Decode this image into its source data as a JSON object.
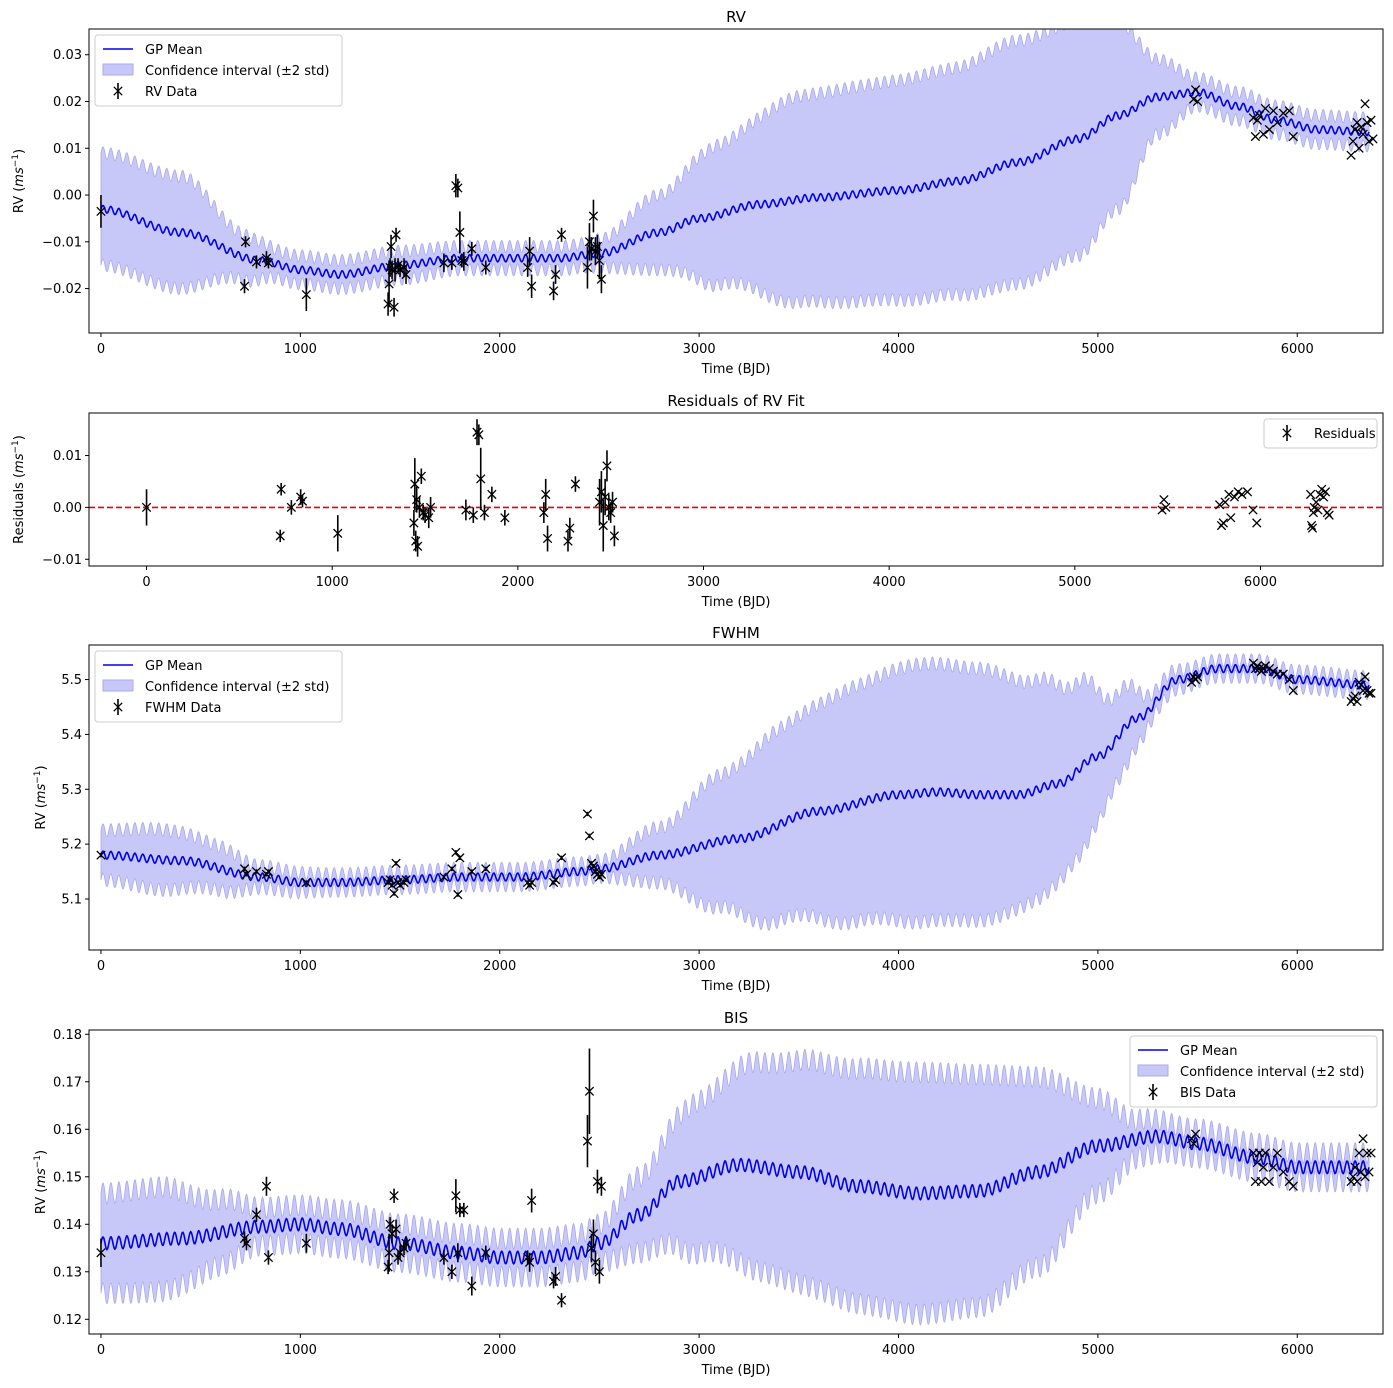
{
  "chart_data": [
    {
      "type": "line",
      "title": "RV",
      "xlabel": "Time (BJD)",
      "ylabel_base": "RV (",
      "ylabel_unit": "ms",
      "ylabel_exp": "−1",
      "ylabel_close": ")",
      "xlim": [
        -60,
        6430
      ],
      "ylim": [
        -0.0295,
        0.0355
      ],
      "xticks": [
        0,
        1000,
        2000,
        3000,
        4000,
        5000,
        6000
      ],
      "yticks": [
        -0.02,
        -0.01,
        0.0,
        0.01,
        0.02,
        0.03
      ],
      "ytick_labels": [
        "−0.02",
        "−0.01",
        "0.00",
        "0.01",
        "0.02",
        "0.03"
      ],
      "legend": "upper-left",
      "legend_entries": {
        "mean": "GP Mean",
        "band": "Confidence interval (±2 std)",
        "data": "RV Data"
      },
      "colors": {
        "mean": "#0000ee",
        "band": "#c8c8f8",
        "band_edge": "#a8a8ee",
        "data": "#000000"
      },
      "gp_mean": {
        "x": [
          0,
          400,
          800,
          1000,
          1200,
          1500,
          1800,
          2100,
          2300,
          2500,
          2800,
          3000,
          3300,
          3600,
          4000,
          4300,
          4600,
          4900,
          5100,
          5300,
          5500,
          5700,
          5900,
          6100,
          6350
        ],
        "y": [
          -0.003,
          -0.008,
          -0.014,
          -0.016,
          -0.017,
          -0.015,
          -0.0135,
          -0.0135,
          -0.0135,
          -0.0125,
          -0.008,
          -0.005,
          -0.002,
          -0.0005,
          0.001,
          0.003,
          0.007,
          0.012,
          0.017,
          0.021,
          0.022,
          0.019,
          0.016,
          0.014,
          0.0135
        ]
      },
      "gp_halfwidth": {
        "x": [
          0,
          400,
          700,
          900,
          1200,
          1500,
          1800,
          2100,
          2400,
          2500,
          2800,
          3100,
          3500,
          3800,
          4200,
          4600,
          4900,
          5100,
          5300,
          5500,
          5700,
          5900,
          6100,
          6350
        ],
        "y": [
          0.012,
          0.012,
          0.005,
          0.003,
          0.003,
          0.003,
          0.0025,
          0.0025,
          0.0025,
          0.003,
          0.008,
          0.015,
          0.022,
          0.023,
          0.024,
          0.026,
          0.025,
          0.02,
          0.008,
          0.003,
          0.003,
          0.003,
          0.003,
          0.003
        ]
      },
      "osc_amp": 0.0013,
      "osc_period": 40,
      "data_x": [
        0,
        720,
        725,
        780,
        830,
        840,
        1030,
        1440,
        1445,
        1450,
        1455,
        1460,
        1470,
        1475,
        1480,
        1490,
        1500,
        1520,
        1530,
        1720,
        1760,
        1780,
        1790,
        1800,
        1810,
        1820,
        1860,
        1930,
        2140,
        2150,
        2160,
        2270,
        2280,
        2310,
        2440,
        2450,
        2460,
        2470,
        2480,
        2490,
        2500,
        2510
      ],
      "data_y": [
        -0.0035,
        -0.0195,
        -0.01,
        -0.0143,
        -0.0135,
        -0.0145,
        -0.0213,
        -0.0233,
        -0.019,
        -0.0155,
        -0.011,
        -0.016,
        -0.024,
        -0.016,
        -0.0085,
        -0.015,
        -0.016,
        -0.0155,
        -0.017,
        -0.0145,
        -0.0145,
        0.002,
        0.0015,
        -0.008,
        -0.014,
        -0.0142,
        -0.0115,
        -0.0155,
        -0.0155,
        -0.012,
        -0.0195,
        -0.0205,
        -0.017,
        -0.0085,
        -0.0155,
        -0.01,
        -0.0115,
        -0.0045,
        -0.012,
        -0.011,
        -0.014,
        -0.018
      ],
      "data_err": [
        0.0035,
        0.0015,
        0.0012,
        0.0014,
        0.0015,
        0.0012,
        0.0035,
        0.0025,
        0.005,
        0.002,
        0.0025,
        0.002,
        0.002,
        0.0025,
        0.0015,
        0.0015,
        0.0015,
        0.002,
        0.002,
        0.002,
        0.0015,
        0.0025,
        0.002,
        0.0045,
        0.0015,
        0.002,
        0.0015,
        0.0015,
        0.002,
        0.003,
        0.0025,
        0.002,
        0.002,
        0.0015,
        0.0045,
        0.004,
        0.0025,
        0.0035,
        0.003,
        0.0025,
        0.004,
        0.003
      ],
      "data2_x": [
        5480,
        5490,
        5500,
        5780,
        5790,
        5800,
        5810,
        5830,
        5840,
        5860,
        5880,
        5900,
        5930,
        5960,
        5980,
        6270,
        6280,
        6290,
        6300,
        6310,
        6320,
        6330,
        6340,
        6350,
        6360,
        6370,
        6380
      ],
      "data2_y": [
        0.0205,
        0.0225,
        0.02,
        0.0165,
        0.0125,
        0.016,
        0.017,
        0.013,
        0.0185,
        0.014,
        0.018,
        0.0155,
        0.0175,
        0.018,
        0.0125,
        0.0085,
        0.0115,
        0.014,
        0.0155,
        0.01,
        0.0145,
        0.013,
        0.0195,
        0.0155,
        0.0115,
        0.016,
        0.012
      ]
    },
    {
      "type": "scatter",
      "title": "Residuals of RV Fit",
      "xlabel": "Time (BJD)",
      "ylabel_base": "Residuals (",
      "ylabel_unit": "ms",
      "ylabel_exp": "−1",
      "ylabel_close": ")",
      "xlim": [
        -310,
        6660
      ],
      "ylim": [
        -0.0113,
        0.0182
      ],
      "xticks": [
        0,
        1000,
        2000,
        3000,
        4000,
        5000,
        6000
      ],
      "yticks": [
        -0.01,
        0.0,
        0.01
      ],
      "ytick_labels": [
        "−0.01",
        "0.00",
        "0.01"
      ],
      "legend": "upper-right",
      "legend_entries": {
        "data": "Residuals"
      },
      "zero_line": {
        "y": 0.0,
        "color": "#ee0000",
        "style": "dashed"
      },
      "data_x": [
        0,
        720,
        725,
        780,
        830,
        840,
        1030,
        1440,
        1445,
        1450,
        1455,
        1460,
        1470,
        1480,
        1490,
        1500,
        1520,
        1530,
        1720,
        1760,
        1780,
        1790,
        1800,
        1820,
        1860,
        1930,
        2140,
        2150,
        2160,
        2270,
        2280,
        2310,
        2440,
        2450,
        2460,
        2470,
        2480,
        2490,
        2500,
        2510,
        2520
      ],
      "data_y": [
        0.0,
        -0.0055,
        0.0035,
        0.0,
        0.002,
        0.0012,
        -0.005,
        -0.003,
        0.0045,
        -0.0065,
        0.0015,
        -0.0075,
        0.0,
        0.006,
        -0.001,
        -0.0015,
        -0.002,
        0.0,
        -0.0005,
        -0.0015,
        0.0145,
        0.014,
        0.0055,
        -0.001,
        0.0025,
        -0.002,
        -0.001,
        0.0025,
        -0.006,
        -0.0065,
        -0.004,
        0.0045,
        0.001,
        0.003,
        -0.0035,
        0.002,
        0.008,
        0.0,
        -0.001,
        0.001,
        -0.0055
      ],
      "data_err": [
        0.0035,
        0.0012,
        0.0012,
        0.0014,
        0.0015,
        0.0012,
        0.0035,
        0.0025,
        0.005,
        0.002,
        0.0025,
        0.002,
        0.002,
        0.0015,
        0.0015,
        0.0015,
        0.002,
        0.002,
        0.002,
        0.0015,
        0.0025,
        0.002,
        0.006,
        0.0015,
        0.0015,
        0.0015,
        0.002,
        0.003,
        0.0025,
        0.002,
        0.002,
        0.0015,
        0.0045,
        0.004,
        0.005,
        0.0035,
        0.003,
        0.0025,
        0.002,
        0.002,
        0.002
      ],
      "data2_x": [
        5470,
        5480,
        5490,
        5780,
        5790,
        5800,
        5810,
        5830,
        5840,
        5860,
        5880,
        5900,
        5930,
        5960,
        5980,
        6270,
        6275,
        6280,
        6285,
        6290,
        6300,
        6310,
        6320,
        6330,
        6340,
        6350,
        6360,
        6370
      ],
      "data2_y": [
        -0.0005,
        0.0015,
        0.0,
        0.0005,
        -0.0035,
        -0.003,
        0.001,
        0.0025,
        -0.002,
        0.002,
        0.003,
        0.0025,
        0.003,
        -0.0005,
        -0.003,
        0.0025,
        -0.0035,
        -0.004,
        -0.001,
        0.0,
        0.001,
        -0.0005,
        0.0025,
        0.0035,
        0.002,
        0.003,
        -0.001,
        -0.0015
      ]
    },
    {
      "type": "line",
      "title": "FWHM",
      "xlabel": "Time (BJD)",
      "ylabel_base": "RV (",
      "ylabel_unit": "ms",
      "ylabel_exp": "−1",
      "ylabel_close": ")",
      "xlim": [
        -60,
        6430
      ],
      "ylim": [
        5.007,
        5.563
      ],
      "xticks": [
        0,
        1000,
        2000,
        3000,
        4000,
        5000,
        6000
      ],
      "yticks": [
        5.1,
        5.2,
        5.3,
        5.4,
        5.5
      ],
      "ytick_labels": [
        "5.1",
        "5.2",
        "5.3",
        "5.4",
        "5.5"
      ],
      "legend": "upper-left",
      "legend_entries": {
        "mean": "GP Mean",
        "band": "Confidence interval (±2 std)",
        "data": "FWHM Data"
      },
      "colors": {
        "mean": "#0000ee",
        "band": "#c8c8f8",
        "band_edge": "#a8a8ee",
        "data": "#000000"
      },
      "gp_mean": {
        "x": [
          0,
          400,
          800,
          1000,
          1200,
          1500,
          1800,
          2100,
          2400,
          2500,
          2800,
          3200,
          3600,
          4000,
          4200,
          4400,
          4600,
          4800,
          5000,
          5200,
          5400,
          5600,
          5800,
          6000,
          6350
        ],
        "y": [
          5.18,
          5.17,
          5.14,
          5.13,
          5.13,
          5.135,
          5.14,
          5.14,
          5.15,
          5.155,
          5.18,
          5.21,
          5.26,
          5.29,
          5.295,
          5.29,
          5.29,
          5.31,
          5.36,
          5.43,
          5.5,
          5.52,
          5.52,
          5.5,
          5.49
        ]
      },
      "gp_halfwidth": {
        "x": [
          0,
          300,
          600,
          800,
          1200,
          1600,
          2000,
          2400,
          2500,
          2800,
          3100,
          3400,
          3800,
          4100,
          4400,
          4700,
          4900,
          5100,
          5300,
          5500,
          5800,
          6350
        ],
        "y": [
          0.045,
          0.055,
          0.04,
          0.02,
          0.015,
          0.015,
          0.015,
          0.015,
          0.015,
          0.05,
          0.12,
          0.175,
          0.215,
          0.235,
          0.23,
          0.2,
          0.16,
          0.08,
          0.02,
          0.015,
          0.015,
          0.015
        ]
      },
      "osc_amp": 0.012,
      "osc_period": 40,
      "data_x": [
        0,
        720,
        730,
        780,
        830,
        840,
        1030,
        1440,
        1450,
        1460,
        1470,
        1480,
        1490,
        1500,
        1520,
        1530,
        1720,
        1760,
        1780,
        1790,
        1800,
        1860,
        1930,
        2140,
        2150,
        2160,
        2270,
        2280,
        2310,
        2440,
        2450,
        2460,
        2470,
        2480,
        2490,
        2500,
        2510
      ],
      "data_y": [
        5.18,
        5.155,
        5.145,
        5.15,
        5.145,
        5.15,
        5.13,
        5.13,
        5.135,
        5.125,
        5.11,
        5.165,
        5.13,
        5.125,
        5.13,
        5.135,
        5.14,
        5.155,
        5.185,
        5.108,
        5.175,
        5.15,
        5.155,
        5.13,
        5.125,
        5.13,
        5.13,
        5.135,
        5.175,
        5.255,
        5.215,
        5.165,
        5.16,
        5.15,
        5.145,
        5.14,
        5.145
      ],
      "data_err": [
        0.004,
        0.004,
        0.004,
        0.004,
        0.004,
        0.004,
        0.004,
        0.004,
        0.004,
        0.004,
        0.004,
        0.004,
        0.004,
        0.004,
        0.004,
        0.004,
        0.004,
        0.004,
        0.004,
        0.004,
        0.004,
        0.004,
        0.004,
        0.004,
        0.004,
        0.004,
        0.004,
        0.004,
        0.004,
        0.004,
        0.004,
        0.004,
        0.004,
        0.004,
        0.004,
        0.004,
        0.004
      ],
      "data2_x": [
        5470,
        5480,
        5490,
        5500,
        5780,
        5790,
        5800,
        5810,
        5820,
        5830,
        5840,
        5860,
        5880,
        5900,
        5930,
        5960,
        5980,
        6270,
        6280,
        6290,
        6300,
        6310,
        6320,
        6330,
        6340,
        6350,
        6360,
        6370
      ],
      "data2_y": [
        5.495,
        5.505,
        5.5,
        5.505,
        5.53,
        5.52,
        5.525,
        5.52,
        5.515,
        5.52,
        5.525,
        5.52,
        5.515,
        5.51,
        5.51,
        5.5,
        5.48,
        5.46,
        5.465,
        5.47,
        5.46,
        5.495,
        5.49,
        5.48,
        5.505,
        5.48,
        5.475,
        5.475
      ]
    },
    {
      "type": "line",
      "title": "BIS",
      "xlabel": "Time (BJD)",
      "ylabel_base": "RV (",
      "ylabel_unit": "ms",
      "ylabel_exp": "−1",
      "ylabel_close": ")",
      "xlim": [
        -60,
        6430
      ],
      "ylim": [
        0.1169,
        0.1809
      ],
      "xticks": [
        0,
        1000,
        2000,
        3000,
        4000,
        5000,
        6000
      ],
      "yticks": [
        0.12,
        0.13,
        0.14,
        0.15,
        0.16,
        0.17,
        0.18
      ],
      "ytick_labels": [
        "0.12",
        "0.13",
        "0.14",
        "0.15",
        "0.16",
        "0.17",
        "0.18"
      ],
      "legend": "upper-right",
      "legend_entries": {
        "mean": "GP Mean",
        "band": "Confidence interval (±2 std)",
        "data": "BIS Data"
      },
      "colors": {
        "mean": "#0000ee",
        "band": "#c8c8f8",
        "band_edge": "#a8a8ee",
        "data": "#000000"
      },
      "gp_mean": {
        "x": [
          0,
          400,
          800,
          1000,
          1200,
          1500,
          1800,
          2000,
          2200,
          2400,
          2500,
          2700,
          2900,
          3200,
          3500,
          3800,
          4100,
          4400,
          4700,
          5000,
          5300,
          5500,
          5800,
          6000,
          6350
        ],
        "y": [
          0.136,
          0.137,
          0.1395,
          0.14,
          0.139,
          0.136,
          0.134,
          0.133,
          0.133,
          0.134,
          0.136,
          0.142,
          0.149,
          0.1525,
          0.151,
          0.148,
          0.1465,
          0.147,
          0.151,
          0.1565,
          0.1585,
          0.157,
          0.154,
          0.152,
          0.152
        ]
      },
      "gp_halfwidth": {
        "x": [
          0,
          300,
          600,
          800,
          1200,
          1600,
          2000,
          2400,
          2500,
          2700,
          3000,
          3300,
          3600,
          3900,
          4100,
          4400,
          4700,
          5000,
          5200,
          5400,
          5600,
          5900,
          6350
        ],
        "y": [
          0.0105,
          0.011,
          0.007,
          0.004,
          0.004,
          0.004,
          0.004,
          0.004,
          0.004,
          0.008,
          0.016,
          0.022,
          0.024,
          0.025,
          0.0255,
          0.0245,
          0.02,
          0.01,
          0.004,
          0.003,
          0.003,
          0.003,
          0.003
        ]
      },
      "osc_amp": 0.0022,
      "osc_period": 40,
      "data_x": [
        0,
        720,
        730,
        780,
        830,
        840,
        1030,
        1440,
        1445,
        1450,
        1460,
        1470,
        1480,
        1490,
        1500,
        1520,
        1530,
        1720,
        1760,
        1780,
        1790,
        1800,
        1820,
        1860,
        1930,
        2140,
        2150,
        2160,
        2270,
        2280,
        2310,
        2440,
        2450,
        2460,
        2470,
        2480,
        2490,
        2500,
        2510
      ],
      "data_y": [
        0.134,
        0.137,
        0.136,
        0.142,
        0.148,
        0.133,
        0.136,
        0.131,
        0.134,
        0.14,
        0.138,
        0.146,
        0.139,
        0.133,
        0.134,
        0.135,
        0.136,
        0.133,
        0.13,
        0.146,
        0.134,
        0.143,
        0.143,
        0.127,
        0.134,
        0.133,
        0.132,
        0.145,
        0.128,
        0.129,
        0.124,
        0.1575,
        0.168,
        0.135,
        0.138,
        0.132,
        0.149,
        0.13,
        0.148
      ],
      "data_err": [
        0.003,
        0.0015,
        0.0015,
        0.0015,
        0.002,
        0.0015,
        0.002,
        0.0015,
        0.004,
        0.0015,
        0.002,
        0.0015,
        0.002,
        0.0015,
        0.0015,
        0.0015,
        0.0015,
        0.0015,
        0.0015,
        0.0035,
        0.002,
        0.0015,
        0.0015,
        0.002,
        0.0015,
        0.0015,
        0.002,
        0.0025,
        0.0015,
        0.002,
        0.0015,
        0.0055,
        0.009,
        0.003,
        0.003,
        0.0025,
        0.0025,
        0.0025,
        0.002
      ],
      "data2_x": [
        5470,
        5480,
        5490,
        5780,
        5790,
        5800,
        5810,
        5820,
        5830,
        5840,
        5860,
        5880,
        5900,
        5930,
        5960,
        5980,
        6270,
        6280,
        6290,
        6300,
        6310,
        6320,
        6330,
        6340,
        6350,
        6360,
        6370
      ],
      "data2_y": [
        0.158,
        0.157,
        0.159,
        0.155,
        0.149,
        0.153,
        0.155,
        0.149,
        0.152,
        0.155,
        0.149,
        0.152,
        0.155,
        0.151,
        0.149,
        0.148,
        0.149,
        0.15,
        0.152,
        0.149,
        0.155,
        0.151,
        0.158,
        0.15,
        0.155,
        0.151,
        0.155
      ]
    }
  ]
}
